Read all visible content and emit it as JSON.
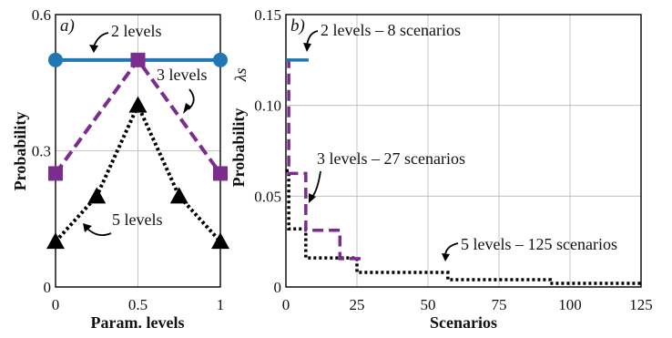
{
  "chart_data": [
    {
      "type": "line",
      "panel_label": "a)",
      "xlabel": "Param. levels",
      "ylabel": "Probability",
      "xlim": [
        0,
        1
      ],
      "ylim": [
        0,
        0.6
      ],
      "x_ticks": [
        "0",
        "0.5",
        "1"
      ],
      "y_ticks": [
        "0",
        "0.3",
        "0.6"
      ],
      "grid": true,
      "series": [
        {
          "name": "2 levels",
          "color": "#1f77b4",
          "marker": "circle",
          "line_style": "solid",
          "x": [
            0,
            1
          ],
          "y": [
            0.5,
            0.5
          ]
        },
        {
          "name": "3 levels",
          "color": "#7b2d8e",
          "marker": "square",
          "line_style": "dashed",
          "x": [
            0,
            0.5,
            1
          ],
          "y": [
            0.25,
            0.5,
            0.25
          ]
        },
        {
          "name": "5 levels",
          "color": "#000000",
          "marker": "triangle",
          "line_style": "dotted",
          "x": [
            0,
            0.25,
            0.5,
            0.75,
            1
          ],
          "y": [
            0.1,
            0.2,
            0.4,
            0.2,
            0.1
          ]
        }
      ],
      "annotations": [
        "2 levels",
        "3 levels",
        "5 levels"
      ]
    },
    {
      "type": "line",
      "panel_label": "b)",
      "xlabel": "Scenarios",
      "ylabel": "Probability",
      "ylabel_symbol": "λs",
      "xlim": [
        0,
        125
      ],
      "ylim": [
        0,
        0.15
      ],
      "x_ticks": [
        "0",
        "25",
        "50",
        "75",
        "100",
        "125"
      ],
      "y_ticks": [
        "0",
        "0.05",
        "0.10",
        "0.15"
      ],
      "grid": true,
      "series": [
        {
          "name": "2 levels – 8 scenarios",
          "color": "#1f77b4",
          "line_style": "solid",
          "steps": [
            [
              0,
              8,
              0.125
            ]
          ]
        },
        {
          "name": "3 levels – 27 scenarios",
          "color": "#7b2d8e",
          "line_style": "dashed",
          "steps": [
            [
              0,
              1,
              0.125
            ],
            [
              1,
              7,
              0.0625
            ],
            [
              7,
              19,
              0.03125
            ],
            [
              19,
              27,
              0.0156
            ]
          ]
        },
        {
          "name": "5 levels – 125 scenarios",
          "color": "#000000",
          "line_style": "dotted",
          "steps": [
            [
              0,
              1,
              0.064
            ],
            [
              1,
              7,
              0.032
            ],
            [
              7,
              25,
              0.016
            ],
            [
              25,
              57,
              0.008
            ],
            [
              57,
              93,
              0.004
            ],
            [
              93,
              125,
              0.002
            ]
          ]
        }
      ],
      "annotations": [
        "2 levels – 8 scenarios",
        "3 levels – 27 scenarios",
        "5 levels – 125 scenarios"
      ]
    }
  ]
}
